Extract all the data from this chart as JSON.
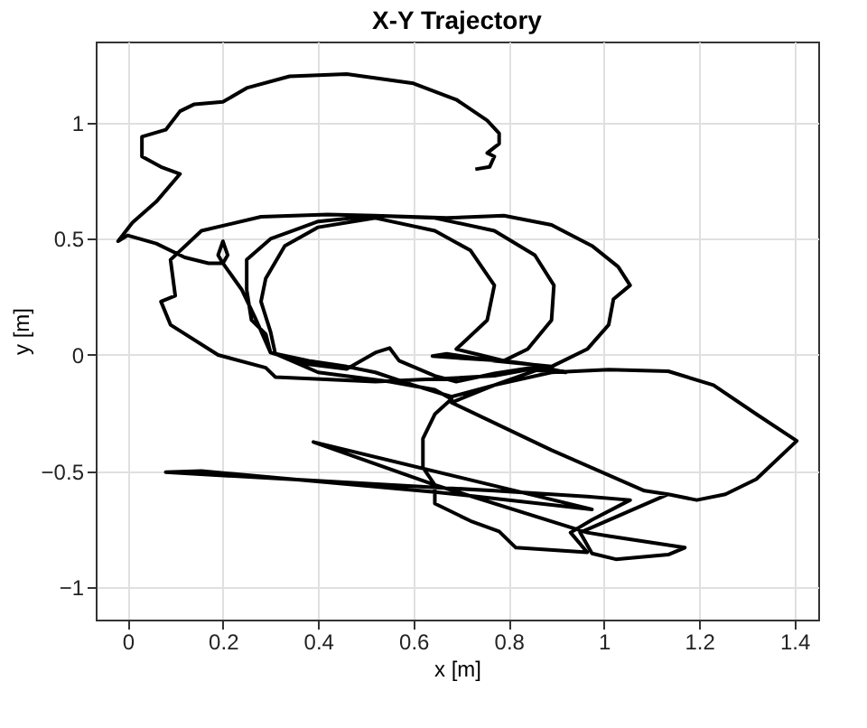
{
  "chart_data": {
    "type": "line",
    "title": "X-Y Trajectory",
    "xlabel": "x [m]",
    "ylabel": "y [m]",
    "color": "#000000",
    "xlim": [
      -0.067,
      1.45
    ],
    "ylim": [
      -1.14,
      1.35
    ],
    "xticks": [
      0,
      0.2,
      0.4,
      0.6,
      0.8,
      1,
      1.2,
      1.4
    ],
    "yticks": [
      -1,
      -0.5,
      0,
      0.5,
      1
    ],
    "grid": true,
    "x": [
      0.73,
      0.76,
      0.77,
      0.755,
      0.78,
      0.78,
      0.755,
      0.69,
      0.6,
      0.46,
      0.34,
      0.25,
      0.2,
      0.14,
      0.11,
      0.08,
      0.03,
      0.03,
      0.07,
      0.11,
      0.06,
      0.01,
      -0.02,
      0.0,
      0.06,
      0.12,
      0.17,
      0.2,
      0.21,
      0.2,
      0.19,
      0.2,
      0.24,
      0.27,
      0.3,
      0.38,
      0.46,
      0.52,
      0.55,
      0.57,
      0.645,
      0.69,
      0.77,
      0.865,
      0.92,
      0.84,
      0.77,
      0.68,
      0.52,
      0.31,
      0.29,
      0.19,
      0.09,
      0.07,
      0.1,
      0.09,
      0.155,
      0.28,
      0.42,
      0.52,
      0.67,
      0.79,
      0.89,
      0.975,
      1.03,
      1.055,
      1.02,
      1.01,
      0.965,
      0.89,
      0.77,
      0.67,
      0.64,
      0.705,
      0.79,
      0.84,
      0.89,
      0.895,
      0.855,
      0.77,
      0.645,
      0.52,
      0.4,
      0.3,
      0.25,
      0.25,
      0.26,
      0.29,
      0.3,
      0.38,
      0.46,
      0.52,
      0.6,
      0.68,
      0.77,
      0.88,
      0.79,
      0.74,
      0.69,
      0.755,
      0.77,
      0.72,
      0.645,
      0.52,
      0.4,
      0.33,
      0.29,
      0.28,
      0.3,
      0.31,
      0.4,
      0.55,
      0.645,
      0.68,
      0.645,
      0.62,
      0.62,
      0.645,
      0.645,
      0.72,
      0.78,
      0.815,
      0.965,
      0.93,
      0.975,
      1.055,
      0.965,
      0.77,
      0.08,
      0.155,
      0.645,
      0.975,
      0.39,
      0.645,
      0.965,
      1.01,
      1.17,
      1.135,
      1.025,
      0.975,
      0.95,
      1.135,
      1.195,
      1.255,
      1.32,
      1.405,
      1.32,
      1.23,
      1.135,
      1.01,
      0.89,
      0.77,
      0.68,
      0.89,
      1.085,
      1.135
    ],
    "values": [
      0.8,
      0.81,
      0.855,
      0.87,
      0.91,
      0.955,
      1.01,
      1.1,
      1.17,
      1.21,
      1.2,
      1.15,
      1.09,
      1.08,
      1.05,
      0.97,
      0.94,
      0.855,
      0.81,
      0.78,
      0.66,
      0.57,
      0.49,
      0.515,
      0.48,
      0.42,
      0.395,
      0.395,
      0.43,
      0.49,
      0.43,
      0.395,
      0.28,
      0.15,
      0.01,
      -0.04,
      -0.06,
      0.01,
      0.03,
      -0.025,
      -0.09,
      -0.115,
      -0.08,
      -0.05,
      -0.075,
      -0.063,
      -0.09,
      -0.1,
      -0.115,
      -0.095,
      -0.055,
      0,
      0.13,
      0.23,
      0.255,
      0.41,
      0.535,
      0.595,
      0.605,
      0.6,
      0.59,
      0.6,
      0.56,
      0.47,
      0.38,
      0.3,
      0.24,
      0.13,
      0.025,
      -0.05,
      -0.025,
      0.005,
      -0.005,
      -0.015,
      -0.025,
      0.025,
      0.15,
      0.3,
      0.43,
      0.535,
      0.59,
      0.6,
      0.575,
      0.5,
      0.41,
      0.28,
      0.15,
      0.09,
      0.01,
      -0.025,
      -0.05,
      -0.075,
      -0.13,
      -0.18,
      -0.13,
      -0.05,
      -0.025,
      0,
      0.025,
      0.15,
      0.3,
      0.45,
      0.535,
      0.59,
      0.55,
      0.47,
      0.33,
      0.23,
      0.1,
      0.005,
      -0.075,
      -0.115,
      -0.15,
      -0.19,
      -0.255,
      -0.36,
      -0.485,
      -0.56,
      -0.64,
      -0.715,
      -0.76,
      -0.83,
      -0.85,
      -0.765,
      -0.71,
      -0.625,
      -0.61,
      -0.585,
      -0.505,
      -0.5,
      -0.59,
      -0.665,
      -0.375,
      -0.56,
      -0.765,
      -0.78,
      -0.83,
      -0.86,
      -0.88,
      -0.855,
      -0.765,
      -0.6,
      -0.625,
      -0.6,
      -0.535,
      -0.37,
      -0.255,
      -0.13,
      -0.07,
      -0.063,
      -0.075,
      -0.13,
      -0.205,
      -0.41,
      -0.585,
      -0.6
    ]
  }
}
